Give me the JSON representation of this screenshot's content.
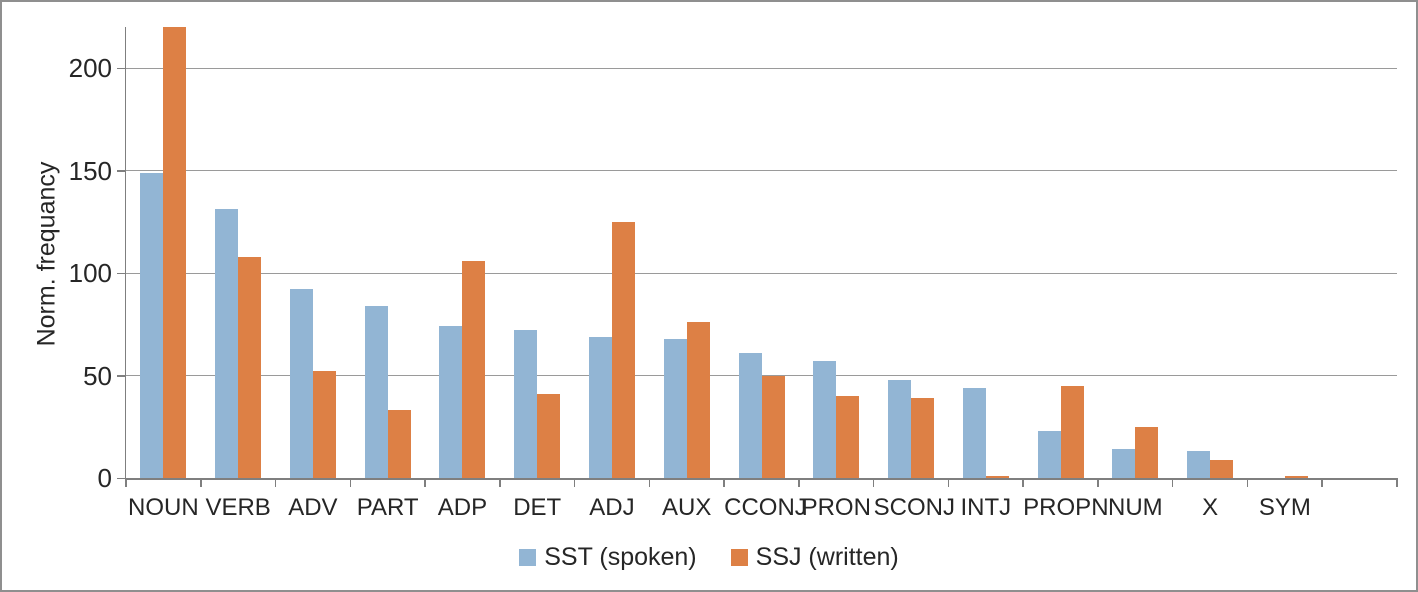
{
  "chart_data": {
    "type": "bar",
    "title": "",
    "xlabel": "",
    "ylabel": "Norm. frequancy",
    "categories": [
      "NOUN",
      "VERB",
      "ADV",
      "PART",
      "ADP",
      "DET",
      "ADJ",
      "AUX",
      "CCONJ",
      "PRON",
      "SCONJ",
      "INTJ",
      "PROPN",
      "NUM",
      "X",
      "SYM"
    ],
    "series": [
      {
        "name": "SST (spoken)",
        "color": "#92B5D4",
        "values": [
          149,
          131,
          92,
          84,
          74,
          72,
          69,
          68,
          61,
          57,
          48,
          44,
          23,
          14,
          13,
          0
        ]
      },
      {
        "name": "SSJ (written)",
        "color": "#DD8045",
        "values": [
          220,
          108,
          52,
          33,
          106,
          41,
          125,
          76,
          50,
          40,
          39,
          1,
          45,
          25,
          9,
          1
        ]
      }
    ],
    "y_ticks": [
      0,
      50,
      100,
      150,
      200
    ],
    "ylim": [
      0,
      220
    ],
    "grid": "horizontal",
    "legend_position": "bottom",
    "empty_trailing_slots": 1
  },
  "colors": {
    "axis": "#7f7f7f",
    "gridline": "#9a9a9a",
    "text": "#262626",
    "background": "#ffffff",
    "frame_border": "#8f8f8f"
  }
}
